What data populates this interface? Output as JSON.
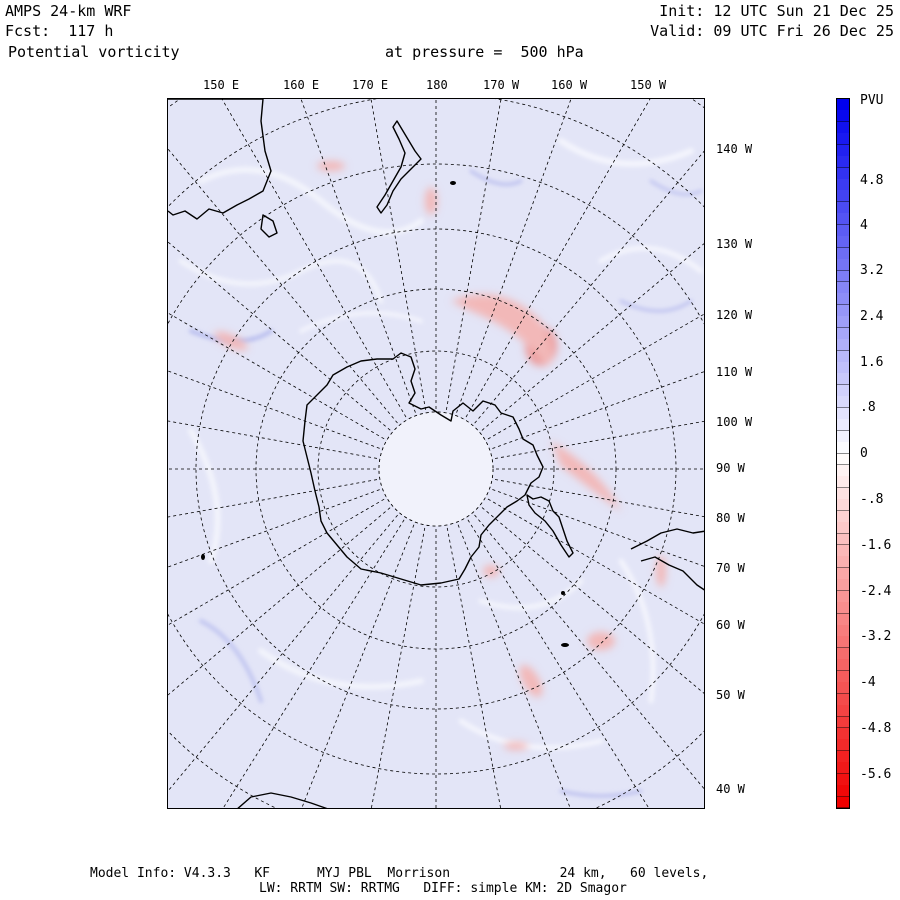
{
  "header": {
    "model": "AMPS 24-km WRF",
    "forecast": "Fcst:  117 h",
    "field": "Potential vorticity",
    "pressure": "at pressure =  500 hPa",
    "init": "Init: 12 UTC Sun 21 Dec 25",
    "valid": "Valid: 09 UTC Fri 26 Dec 25"
  },
  "top_lon_labels": [
    "150 E",
    "160 E",
    "170 E",
    "180",
    "170 W",
    "160 W",
    "150 W"
  ],
  "right_lon_labels": [
    "140 W",
    "130 W",
    "120 W",
    "110 W",
    "100 W",
    "90 W",
    "80 W",
    "70 W",
    "60 W",
    "50 W",
    "40 W"
  ],
  "colorbar": {
    "unit": "PVU",
    "labels": [
      "4.8",
      "4",
      "3.2",
      "2.4",
      "1.6",
      ".8",
      "0",
      "-.8",
      "-1.6",
      "-2.4",
      "-3.2",
      "-4",
      "-4.8",
      "-5.6"
    ]
  },
  "footer": {
    "line1": "Model Info: V4.3.3   KF      MYJ PBL  Morrison              24 km,   60 levels,",
    "line2": "LW: RRTM SW: RRTMG   DIFF: simple KM: 2D Smagor"
  }
}
